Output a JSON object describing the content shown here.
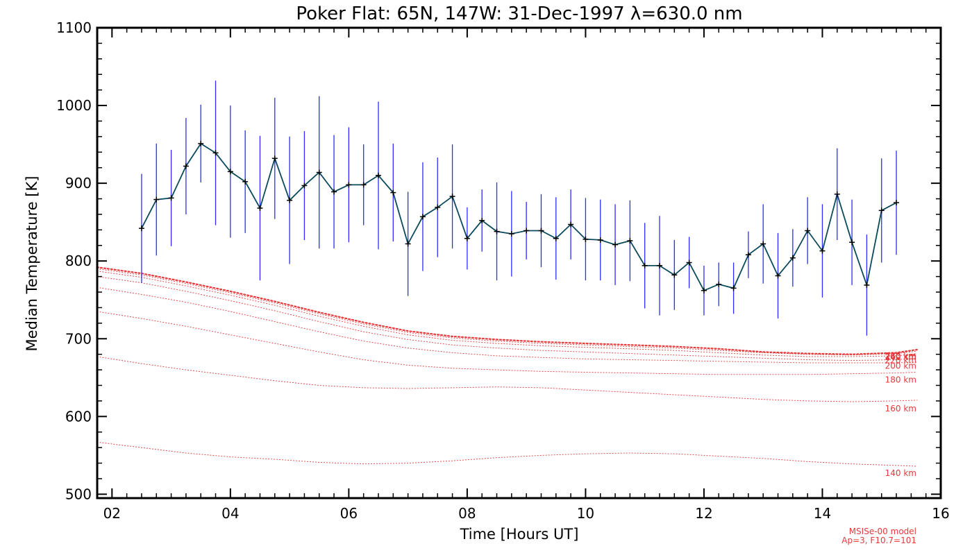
{
  "chart_data": {
    "type": "line",
    "title": "Poker Flat: 65N, 147W: 31-Dec-1997 λ=630.0 nm",
    "xlabel": "Time [Hours UT]",
    "ylabel": "Median Temperature [K]",
    "xlim": [
      1.75,
      16
    ],
    "ylim": [
      495,
      1100
    ],
    "x_ticks": [
      2,
      4,
      6,
      8,
      10,
      12,
      14,
      16
    ],
    "x_tick_labels": [
      "02",
      "04",
      "06",
      "08",
      "10",
      "12",
      "14",
      "16"
    ],
    "y_ticks": [
      500,
      600,
      700,
      800,
      900,
      1000,
      1100
    ],
    "y_tick_labels": [
      "500",
      "600",
      "700",
      "800",
      "900",
      "1000",
      "1100"
    ],
    "colors": {
      "measured": "#0b4a5c",
      "error_bar": "#2b2bff",
      "model": "#e8393b"
    },
    "measured": {
      "x": [
        2.5,
        2.75,
        3.0,
        3.25,
        3.5,
        3.75,
        4.0,
        4.25,
        4.5,
        4.75,
        5.0,
        5.25,
        5.5,
        5.75,
        6.0,
        6.25,
        6.5,
        6.75,
        7.0,
        7.25,
        7.5,
        7.75,
        8.0,
        8.25,
        8.5,
        8.75,
        9.0,
        9.25,
        9.5,
        9.75,
        10.0,
        10.25,
        10.5,
        10.75,
        11.0,
        11.25,
        11.5,
        11.75,
        12.0,
        12.25,
        12.5,
        12.75,
        13.0,
        13.25,
        13.5,
        13.75,
        14.0,
        14.25,
        14.5,
        14.75,
        15.0,
        15.25
      ],
      "y": [
        842,
        879,
        881,
        922,
        951,
        939,
        915,
        902,
        868,
        932,
        878,
        897,
        914,
        889,
        898,
        898,
        910,
        888,
        822,
        857,
        869,
        883,
        829,
        852,
        838,
        835,
        839,
        839,
        829,
        847,
        828,
        827,
        821,
        826,
        794,
        794,
        782,
        798,
        762,
        770,
        765,
        808,
        822,
        781,
        804,
        839,
        813,
        886,
        824,
        769,
        865,
        875
      ],
      "err": [
        70,
        72,
        62,
        62,
        50,
        93,
        85,
        66,
        93,
        78,
        82,
        70,
        98,
        73,
        74,
        52,
        95,
        63,
        67,
        70,
        64,
        67,
        40,
        40,
        63,
        55,
        37,
        47,
        53,
        45,
        53,
        52,
        52,
        52,
        55,
        64,
        45,
        33,
        32,
        28,
        33,
        30,
        51,
        55,
        37,
        43,
        60,
        59,
        55,
        65,
        67,
        67
      ]
    },
    "model_altitudes": [
      {
        "label": "140 km",
        "label_value": 527,
        "y": [
          567,
          560,
          553,
          548,
          545,
          541,
          539,
          540,
          543,
          547,
          550,
          552,
          553,
          552,
          549,
          546,
          542,
          539,
          537,
          536
        ]
      },
      {
        "label": "160 km",
        "label_value": 610,
        "y": [
          677,
          668,
          660,
          653,
          646,
          640,
          637,
          636,
          637,
          638,
          637,
          634,
          631,
          628,
          625,
          622,
          620,
          619,
          620,
          621
        ]
      },
      {
        "label": "180 km",
        "label_value": 647,
        "y": [
          735,
          726,
          716,
          705,
          694,
          683,
          673,
          666,
          662,
          660,
          658,
          657,
          656,
          655,
          654,
          654,
          654,
          655,
          656,
          657
        ]
      },
      {
        "label": "200 km",
        "label_value": 665,
        "y": [
          766,
          757,
          747,
          735,
          722,
          709,
          697,
          688,
          682,
          678,
          676,
          674,
          673,
          672,
          671,
          670,
          669,
          669,
          669,
          670
        ]
      },
      {
        "label": "220 km",
        "label_value": 672,
        "y": [
          780,
          772,
          761,
          749,
          736,
          722,
          709,
          699,
          692,
          688,
          685,
          683,
          681,
          679,
          677,
          675,
          673,
          672,
          673,
          675
        ]
      },
      {
        "label": "240 km",
        "label_value": 676,
        "y": [
          787,
          779,
          768,
          756,
          743,
          729,
          716,
          705,
          698,
          694,
          691,
          689,
          687,
          685,
          682,
          679,
          677,
          677,
          678,
          681
        ]
      },
      {
        "label": "260 km",
        "label_value": 677,
        "y": [
          790,
          782,
          771,
          759,
          746,
          732,
          719,
          708,
          701,
          697,
          694,
          692,
          690,
          688,
          685,
          682,
          680,
          679,
          681,
          684
        ]
      },
      {
        "label": "280 km",
        "label_value": 678,
        "y": [
          792,
          784,
          773,
          761,
          748,
          734,
          721,
          710,
          703,
          699,
          696,
          694,
          692,
          690,
          687,
          683,
          681,
          680,
          682,
          686
        ]
      }
    ],
    "model_x": [
      1.75,
      2.5,
      3.25,
      4.0,
      4.75,
      5.5,
      6.25,
      7.0,
      7.75,
      8.5,
      9.25,
      10.0,
      10.75,
      11.5,
      12.25,
      13.0,
      13.75,
      14.5,
      15.25,
      15.6
    ],
    "model_note": [
      "MSISe-00 model",
      "Ap=3, F10.7=101"
    ]
  }
}
